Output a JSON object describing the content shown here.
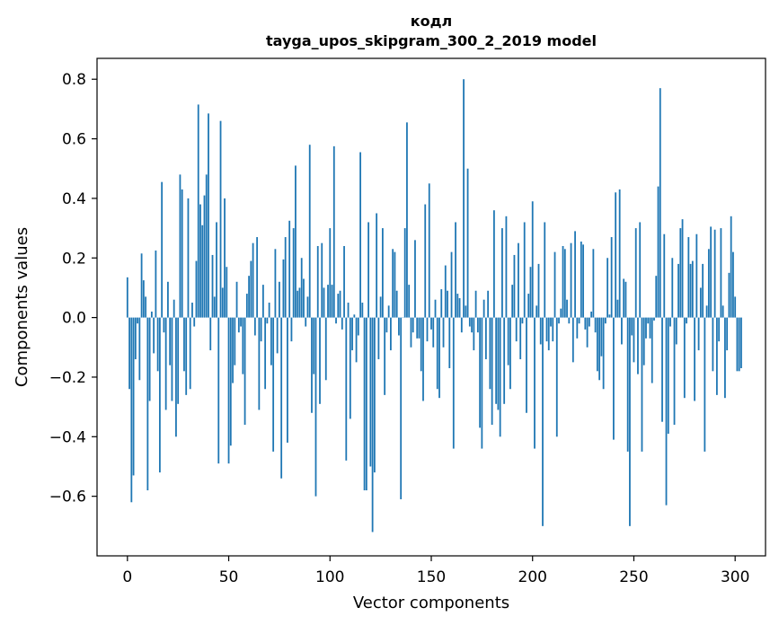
{
  "chart_data": {
    "type": "bar",
    "title_line1": "кодл",
    "title_line2": "tayga_upos_skipgram_300_2_2019 model",
    "xlabel": "Vector components",
    "ylabel": "Components values",
    "xlim": [
      -15,
      315
    ],
    "ylim": [
      -0.8,
      0.87
    ],
    "xticks": [
      0,
      50,
      100,
      150,
      200,
      250,
      300
    ],
    "xtick_labels": [
      "0",
      "50",
      "100",
      "150",
      "200",
      "250",
      "300"
    ],
    "yticks": [
      -0.6,
      -0.4,
      -0.2,
      0.0,
      0.2,
      0.4,
      0.6,
      0.8
    ],
    "ytick_labels": [
      "−0.6",
      "−0.4",
      "−0.2",
      "0.0",
      "0.2",
      "0.4",
      "0.6",
      "0.8"
    ],
    "values": [
      0.135,
      -0.24,
      -0.62,
      -0.53,
      -0.14,
      -0.02,
      -0.21,
      0.215,
      0.125,
      0.07,
      -0.58,
      -0.28,
      0.02,
      -0.12,
      0.225,
      -0.18,
      -0.52,
      0.455,
      -0.05,
      -0.31,
      0.12,
      -0.16,
      -0.28,
      0.06,
      -0.4,
      -0.29,
      0.48,
      0.43,
      -0.18,
      -0.26,
      0.4,
      -0.24,
      0.05,
      -0.03,
      0.19,
      0.715,
      0.38,
      0.31,
      0.41,
      0.48,
      0.685,
      -0.11,
      0.21,
      0.07,
      0.32,
      -0.49,
      0.66,
      0.1,
      0.4,
      0.17,
      -0.49,
      -0.43,
      -0.22,
      -0.16,
      0.12,
      -0.05,
      -0.03,
      -0.19,
      -0.36,
      0.08,
      0.14,
      0.19,
      0.25,
      -0.06,
      0.27,
      -0.31,
      -0.08,
      0.11,
      -0.24,
      -0.02,
      0.05,
      -0.16,
      -0.45,
      0.23,
      -0.12,
      0.12,
      -0.54,
      0.195,
      0.27,
      -0.42,
      0.325,
      -0.08,
      0.3,
      0.51,
      0.09,
      0.1,
      0.2,
      0.13,
      -0.03,
      0.07,
      0.58,
      -0.32,
      -0.19,
      -0.6,
      0.24,
      -0.29,
      0.25,
      0.1,
      -0.21,
      0.11,
      0.3,
      0.11,
      0.575,
      -0.02,
      0.08,
      0.09,
      -0.04,
      0.24,
      -0.48,
      0.05,
      -0.34,
      -0.11,
      0.01,
      -0.15,
      -0.06,
      0.555,
      0.05,
      -0.58,
      -0.58,
      0.32,
      -0.5,
      -0.72,
      -0.52,
      0.35,
      -0.14,
      0.07,
      0.3,
      -0.26,
      -0.05,
      0.04,
      -0.11,
      0.23,
      0.22,
      0.09,
      -0.06,
      -0.61,
      0.0,
      0.3,
      0.655,
      0.11,
      -0.1,
      -0.05,
      0.26,
      -0.07,
      -0.07,
      -0.18,
      -0.28,
      0.38,
      -0.08,
      0.45,
      -0.04,
      -0.1,
      0.06,
      -0.24,
      -0.27,
      0.095,
      -0.1,
      0.175,
      0.09,
      -0.17,
      0.22,
      -0.44,
      0.32,
      0.08,
      0.065,
      -0.05,
      0.8,
      0.04,
      0.5,
      -0.03,
      -0.05,
      -0.11,
      0.09,
      -0.05,
      -0.37,
      -0.44,
      0.06,
      -0.14,
      0.09,
      -0.24,
      -0.36,
      0.36,
      -0.29,
      -0.31,
      -0.4,
      0.3,
      -0.29,
      0.34,
      -0.16,
      -0.24,
      0.11,
      0.21,
      -0.08,
      0.25,
      -0.14,
      -0.02,
      0.32,
      -0.32,
      0.08,
      0.17,
      0.39,
      -0.44,
      0.04,
      0.18,
      -0.09,
      -0.7,
      0.32,
      -0.08,
      -0.11,
      -0.03,
      -0.08,
      0.22,
      -0.4,
      -0.02,
      0.03,
      0.24,
      0.23,
      0.06,
      -0.02,
      0.25,
      -0.15,
      0.29,
      -0.07,
      -0.02,
      0.255,
      0.245,
      -0.04,
      -0.1,
      -0.03,
      0.02,
      0.23,
      -0.05,
      -0.18,
      -0.21,
      -0.13,
      -0.24,
      -0.02,
      0.2,
      0.01,
      0.27,
      -0.41,
      0.42,
      0.06,
      0.43,
      -0.09,
      0.13,
      0.12,
      -0.45,
      -0.7,
      -0.06,
      -0.15,
      0.3,
      -0.19,
      0.32,
      -0.45,
      -0.16,
      -0.07,
      -0.02,
      -0.07,
      -0.22,
      -0.01,
      0.14,
      0.44,
      0.77,
      -0.35,
      0.28,
      -0.63,
      -0.39,
      -0.03,
      0.2,
      -0.36,
      -0.09,
      0.18,
      0.3,
      0.33,
      -0.27,
      -0.02,
      0.27,
      0.18,
      0.19,
      -0.28,
      0.28,
      -0.11,
      0.1,
      0.18,
      -0.45,
      0.04,
      0.23,
      0.305,
      -0.18,
      0.295,
      -0.26,
      -0.08,
      0.3,
      0.04,
      -0.27,
      -0.11,
      0.15,
      0.34,
      0.22,
      0.07,
      -0.18,
      -0.18,
      -0.17
    ]
  }
}
